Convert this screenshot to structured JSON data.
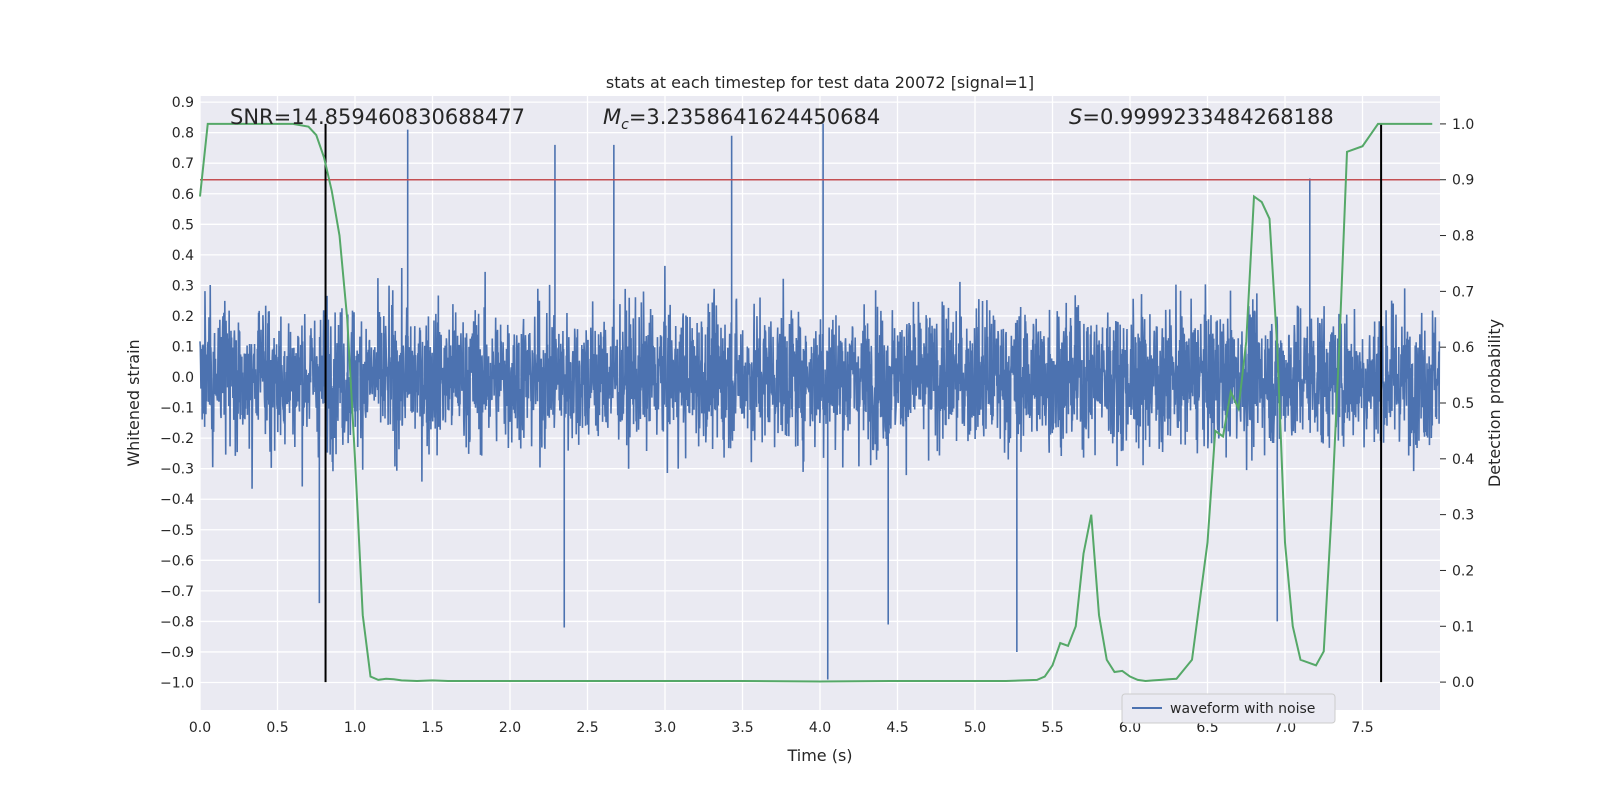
{
  "chart_data": {
    "type": "line",
    "title": "stats at each timestep for test data 20072 [signal=1]",
    "xlabel": "Time (s)",
    "ylabel": "Whitened strain",
    "y2label": "Detection probability",
    "xlim": [
      0.0,
      8.0
    ],
    "ylim": [
      -1.09,
      0.92
    ],
    "y2lim": [
      -0.05,
      1.05
    ],
    "xticks": [
      "0.0",
      "0.5",
      "1.0",
      "1.5",
      "2.0",
      "2.5",
      "3.0",
      "3.5",
      "4.0",
      "4.5",
      "5.0",
      "5.5",
      "6.0",
      "6.5",
      "7.0",
      "7.5"
    ],
    "yticks": [
      "0.9",
      "0.8",
      "0.7",
      "0.6",
      "0.5",
      "0.4",
      "0.3",
      "0.2",
      "0.1",
      "0.0",
      "−0.1",
      "−0.2",
      "−0.3",
      "−0.4",
      "−0.5",
      "−0.6",
      "−0.7",
      "−0.8",
      "−0.9",
      "−1.0"
    ],
    "y2ticks": [
      "1.0",
      "0.9",
      "0.8",
      "0.7",
      "0.6",
      "0.5",
      "0.4",
      "0.3",
      "0.2",
      "0.1",
      "0.0"
    ],
    "annotations": {
      "snr": "SNR=14.859460830688477",
      "mc_symbol": "M",
      "mc_sub": "c",
      "mc_value": "=3.2358641624450684",
      "s_symbol": "S",
      "s_value": "=0.9999233484268188"
    },
    "legend": {
      "label": "waveform with noise",
      "loc": "lower-right"
    },
    "threshold_line": {
      "value": 0.9,
      "axis": "right",
      "color": "#c44e52"
    },
    "vertical_lines": [
      0.81,
      7.62
    ],
    "series": [
      {
        "name": "waveform with noise",
        "axis": "left",
        "color": "#4c72b0",
        "style": "noise",
        "noise_band_std": 0.16,
        "spikes": [
          {
            "t": 1.34,
            "v": 0.81
          },
          {
            "t": 2.29,
            "v": 0.76
          },
          {
            "t": 2.67,
            "v": 0.76
          },
          {
            "t": 3.43,
            "v": 0.79
          },
          {
            "t": 4.02,
            "v": 0.83
          },
          {
            "t": 4.05,
            "v": -0.99
          },
          {
            "t": 5.27,
            "v": -0.9
          },
          {
            "t": 7.16,
            "v": 0.65
          },
          {
            "t": 6.95,
            "v": -0.8
          },
          {
            "t": 0.77,
            "v": -0.74
          },
          {
            "t": 2.35,
            "v": -0.82
          },
          {
            "t": 4.44,
            "v": -0.81
          }
        ]
      },
      {
        "name": "detection probability",
        "axis": "right",
        "color": "#55a868",
        "x": [
          0.0,
          0.05,
          0.1,
          0.2,
          0.3,
          0.4,
          0.5,
          0.6,
          0.7,
          0.75,
          0.8,
          0.85,
          0.9,
          0.95,
          1.0,
          1.05,
          1.1,
          1.15,
          1.2,
          1.25,
          1.3,
          1.4,
          1.5,
          1.6,
          1.7,
          1.8,
          2.0,
          2.2,
          2.4,
          2.6,
          2.8,
          3.0,
          3.5,
          4.0,
          4.5,
          5.0,
          5.2,
          5.4,
          5.45,
          5.5,
          5.55,
          5.6,
          5.65,
          5.7,
          5.75,
          5.8,
          5.85,
          5.9,
          5.95,
          6.0,
          6.05,
          6.1,
          6.15,
          6.2,
          6.25,
          6.3,
          6.4,
          6.5,
          6.55,
          6.6,
          6.65,
          6.7,
          6.75,
          6.8,
          6.85,
          6.9,
          6.95,
          7.0,
          7.05,
          7.1,
          7.15,
          7.2,
          7.25,
          7.3,
          7.35,
          7.4,
          7.5,
          7.55,
          7.6,
          7.65,
          7.7,
          7.75,
          7.8,
          7.85,
          7.9,
          7.95
        ],
        "y": [
          0.87,
          1.0,
          1.0,
          1.0,
          1.0,
          1.0,
          1.0,
          1.0,
          0.995,
          0.98,
          0.94,
          0.88,
          0.8,
          0.65,
          0.4,
          0.12,
          0.01,
          0.004,
          0.006,
          0.005,
          0.003,
          0.002,
          0.003,
          0.002,
          0.002,
          0.002,
          0.002,
          0.002,
          0.002,
          0.002,
          0.002,
          0.002,
          0.002,
          0.001,
          0.002,
          0.002,
          0.002,
          0.004,
          0.01,
          0.03,
          0.07,
          0.065,
          0.1,
          0.23,
          0.3,
          0.12,
          0.04,
          0.018,
          0.02,
          0.01,
          0.004,
          0.002,
          0.003,
          0.004,
          0.005,
          0.006,
          0.04,
          0.25,
          0.45,
          0.44,
          0.52,
          0.49,
          0.61,
          0.87,
          0.86,
          0.83,
          0.6,
          0.25,
          0.1,
          0.04,
          0.035,
          0.03,
          0.055,
          0.3,
          0.6,
          0.95,
          0.96,
          0.98,
          1.0,
          1.0,
          1.0,
          1.0,
          1.0,
          1.0,
          1.0,
          1.0
        ]
      }
    ]
  }
}
